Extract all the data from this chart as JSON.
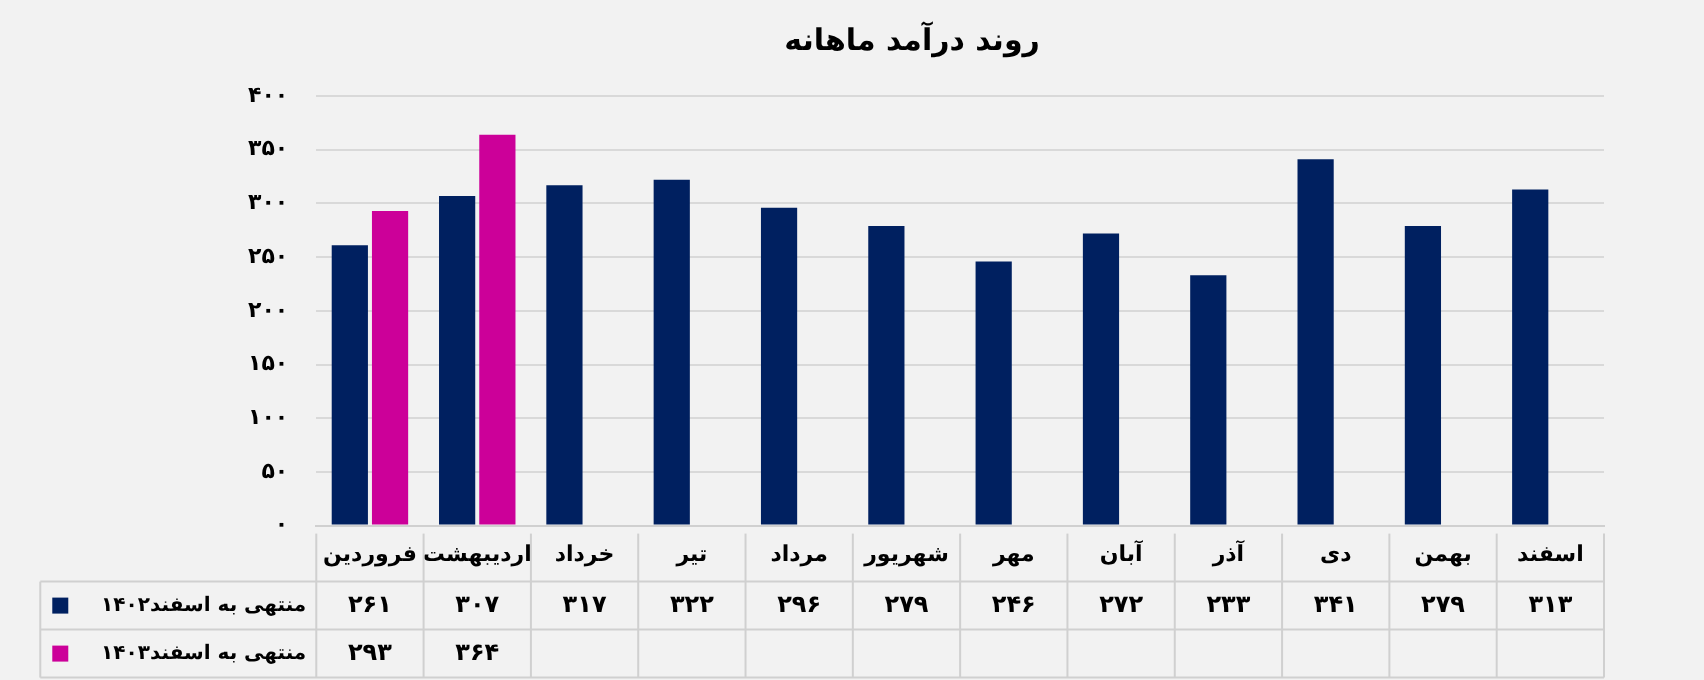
{
  "chart_data": {
    "type": "bar",
    "title": "روند درآمد ماهانه",
    "categories": [
      "فروردین",
      "اردیبهشت",
      "خرداد",
      "تیر",
      "مرداد",
      "شهریور",
      "مهر",
      "آبان",
      "آذر",
      "دی",
      "بهمن",
      "اسفند"
    ],
    "series": [
      {
        "name": "منتهی به اسفند۱۴۰۲",
        "color": "#002060",
        "values": [
          261,
          307,
          317,
          322,
          296,
          279,
          246,
          272,
          233,
          341,
          279,
          313
        ],
        "value_labels": [
          "۲۶۱",
          "۳۰۷",
          "۳۱۷",
          "۳۲۲",
          "۲۹۶",
          "۲۷۹",
          "۲۴۶",
          "۲۷۲",
          "۲۳۳",
          "۳۴۱",
          "۲۷۹",
          "۳۱۳"
        ]
      },
      {
        "name": "منتهی به اسفند۱۴۰۳",
        "color": "#cc0099",
        "values": [
          293,
          364,
          null,
          null,
          null,
          null,
          null,
          null,
          null,
          null,
          null,
          null
        ],
        "value_labels": [
          "۲۹۳",
          "۳۶۴",
          null,
          null,
          null,
          null,
          null,
          null,
          null,
          null,
          null,
          null
        ]
      }
    ],
    "ylim": [
      0,
      400
    ],
    "yticks": [
      {
        "value": 0,
        "label": "۰"
      },
      {
        "value": 50,
        "label": "۵۰"
      },
      {
        "value": 100,
        "label": "۱۰۰"
      },
      {
        "value": 150,
        "label": "۱۵۰"
      },
      {
        "value": 200,
        "label": "۲۰۰"
      },
      {
        "value": 250,
        "label": "۲۵۰"
      },
      {
        "value": 300,
        "label": "۳۰۰"
      },
      {
        "value": 350,
        "label": "۳۵۰"
      },
      {
        "value": 400,
        "label": "۴۰۰"
      }
    ],
    "grid": "y",
    "legend": "bottom left"
  }
}
